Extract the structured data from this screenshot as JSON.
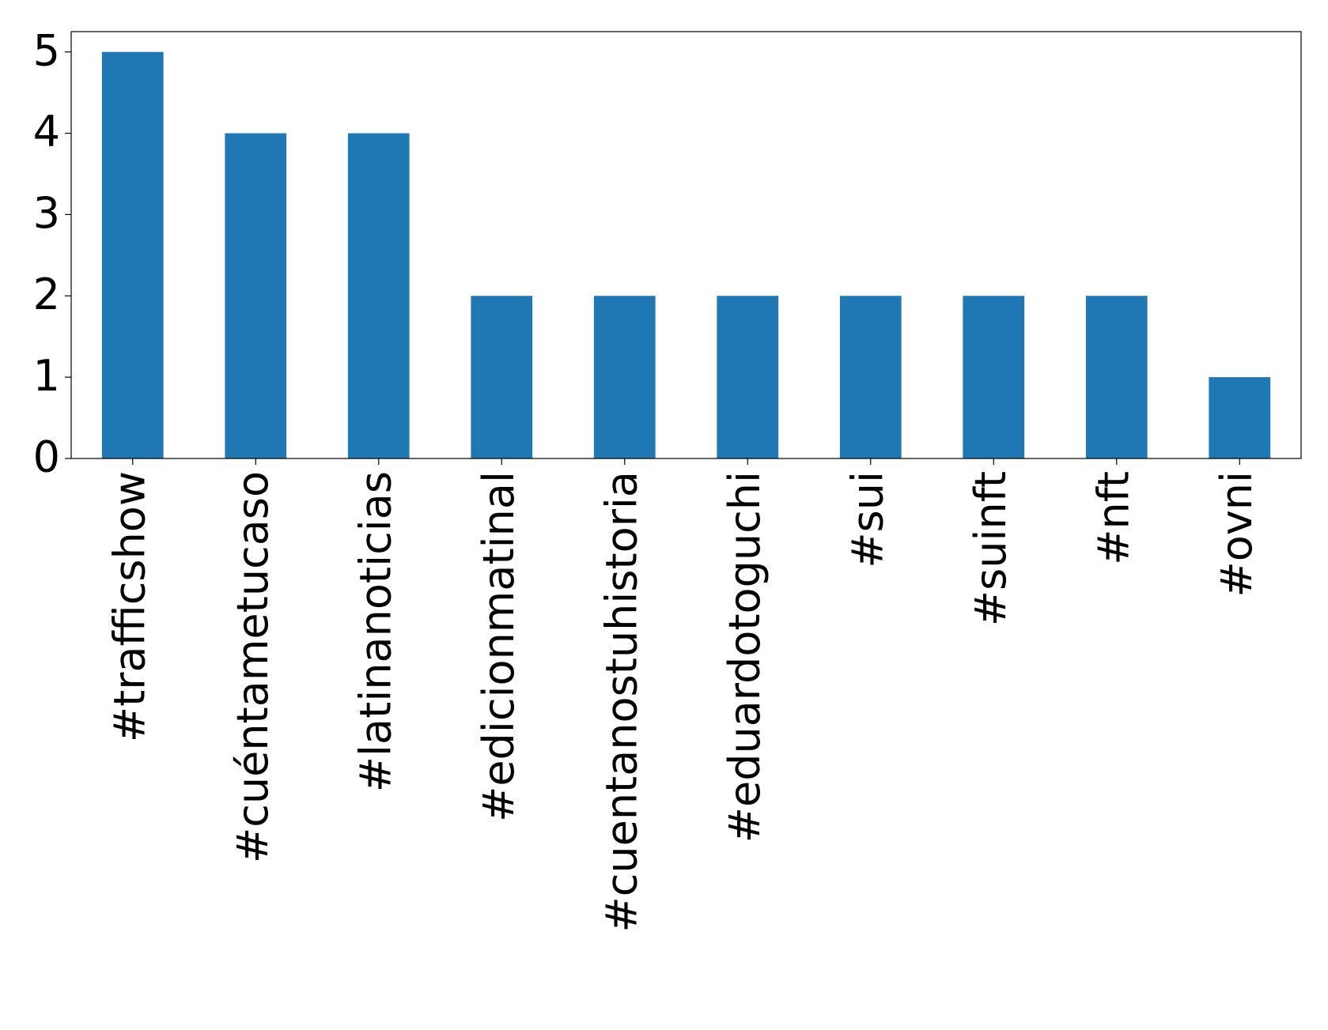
{
  "chart_data": {
    "type": "bar",
    "categories": [
      "#trafficshow",
      "#cuéntametucaso",
      "#latinanoticias",
      "#edicionmatinal",
      "#cuentanostuhistoria",
      "#eduardotoguchi",
      "#sui",
      "#suinft",
      "#nft",
      "#ovni"
    ],
    "values": [
      5,
      4,
      4,
      2,
      2,
      2,
      2,
      2,
      2,
      1
    ],
    "color": "#1f77b4",
    "ylim": [
      0,
      5.25
    ],
    "yticks": [
      0,
      1,
      2,
      3,
      4,
      5
    ],
    "grid": false
  }
}
